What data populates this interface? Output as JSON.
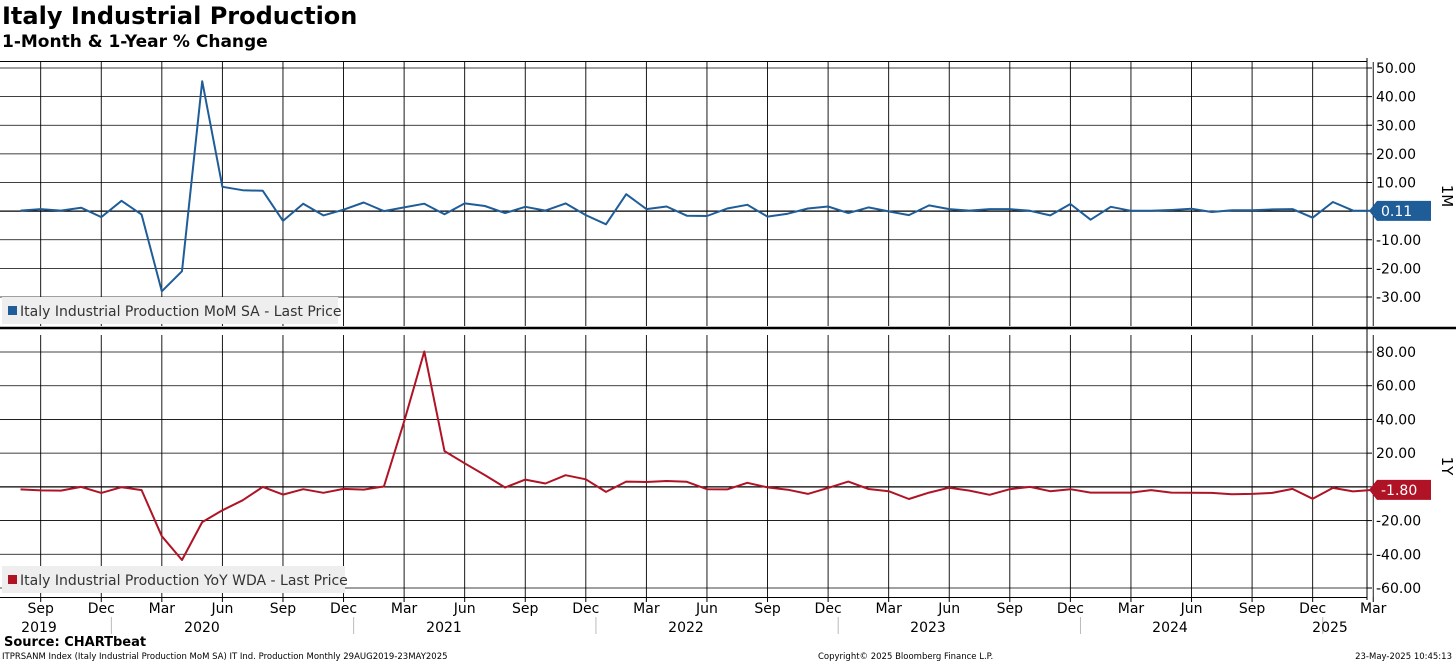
{
  "title": "Italy Industrial Production",
  "subtitle": "1-Month & 1-Year % Change",
  "source": "Source: CHARTbeat",
  "footer": {
    "left": "ITPRSANM Index (Italy Industrial Production MoM SA) IT Ind. Production  Monthly 29AUG2019-23MAY2025",
    "center": "Copyright© 2025 Bloomberg Finance L.P.",
    "right": "23-May-2025 10:45:13"
  },
  "colors": {
    "mom": "#1f5d99",
    "yoy": "#b01325",
    "grid": "#000000"
  },
  "chart_data": [
    {
      "type": "line",
      "panel_label": "1M",
      "x": [
        "2019-08",
        "2019-09",
        "2019-10",
        "2019-11",
        "2019-12",
        "2020-01",
        "2020-02",
        "2020-03",
        "2020-04",
        "2020-05",
        "2020-06",
        "2020-07",
        "2020-08",
        "2020-09",
        "2020-10",
        "2020-11",
        "2020-12",
        "2021-01",
        "2021-02",
        "2021-03",
        "2021-04",
        "2021-05",
        "2021-06",
        "2021-07",
        "2021-08",
        "2021-09",
        "2021-10",
        "2021-11",
        "2021-12",
        "2022-01",
        "2022-02",
        "2022-03",
        "2022-04",
        "2022-05",
        "2022-06",
        "2022-07",
        "2022-08",
        "2022-09",
        "2022-10",
        "2022-11",
        "2022-12",
        "2023-01",
        "2023-02",
        "2023-03",
        "2023-04",
        "2023-05",
        "2023-06",
        "2023-07",
        "2023-08",
        "2023-09",
        "2023-10",
        "2023-11",
        "2023-12",
        "2024-01",
        "2024-02",
        "2024-03",
        "2024-04",
        "2024-05",
        "2024-06",
        "2024-07",
        "2024-08",
        "2024-09",
        "2024-10",
        "2024-11",
        "2024-12",
        "2025-01",
        "2025-02",
        "2025-03"
      ],
      "series": [
        {
          "name": "Italy Industrial Production MoM SA - Last Price",
          "values": [
            0.2,
            0.7,
            0.2,
            1.2,
            -2.1,
            3.6,
            -1.2,
            -28.0,
            -21.0,
            45.4,
            8.5,
            7.3,
            7.1,
            -3.4,
            2.6,
            -1.5,
            0.5,
            3.0,
            0.0,
            1.3,
            2.6,
            -1.1,
            2.7,
            1.8,
            -0.7,
            1.5,
            0.2,
            2.7,
            -1.4,
            -4.6,
            5.9,
            0.7,
            1.6,
            -1.6,
            -1.7,
            0.9,
            2.2,
            -1.9,
            -0.9,
            0.9,
            1.6,
            -0.7,
            1.3,
            -0.1,
            -1.4,
            2.0,
            0.7,
            0.2,
            0.7,
            0.7,
            0.1,
            -1.5,
            2.5,
            -3.0,
            1.5,
            0.1,
            0.1,
            0.4,
            0.8,
            -0.3,
            0.3,
            0.3,
            0.6,
            0.7,
            -2.3,
            3.2,
            0.2,
            0.1
          ]
        }
      ],
      "last_value_label": "0.11",
      "y_ticks": [
        "50.00",
        "40.00",
        "30.00",
        "20.00",
        "10.00",
        "0.00",
        "-10.00",
        "-20.00",
        "-30.00"
      ],
      "ylim": [
        -40,
        52
      ]
    },
    {
      "type": "line",
      "panel_label": "1Y",
      "x": [
        "2019-08",
        "2019-09",
        "2019-10",
        "2019-11",
        "2019-12",
        "2020-01",
        "2020-02",
        "2020-03",
        "2020-04",
        "2020-05",
        "2020-06",
        "2020-07",
        "2020-08",
        "2020-09",
        "2020-10",
        "2020-11",
        "2020-12",
        "2021-01",
        "2021-02",
        "2021-03",
        "2021-04",
        "2021-05",
        "2021-06",
        "2021-07",
        "2021-08",
        "2021-09",
        "2021-10",
        "2021-11",
        "2021-12",
        "2022-01",
        "2022-02",
        "2022-03",
        "2022-04",
        "2022-05",
        "2022-06",
        "2022-07",
        "2022-08",
        "2022-09",
        "2022-10",
        "2022-11",
        "2022-12",
        "2023-01",
        "2023-02",
        "2023-03",
        "2023-04",
        "2023-05",
        "2023-06",
        "2023-07",
        "2023-08",
        "2023-09",
        "2023-10",
        "2023-11",
        "2023-12",
        "2024-01",
        "2024-02",
        "2024-03",
        "2024-04",
        "2024-05",
        "2024-06",
        "2024-07",
        "2024-08",
        "2024-09",
        "2024-10",
        "2024-11",
        "2024-12",
        "2025-01",
        "2025-02",
        "2025-03"
      ],
      "series": [
        {
          "name": "Italy Industrial Production YoY WDA - Last Price",
          "values": [
            -1.5,
            -2.1,
            -2.2,
            0.0,
            -3.6,
            -0.2,
            -1.9,
            -29.3,
            -43.4,
            -20.9,
            -13.9,
            -8.0,
            0.0,
            -4.6,
            -1.4,
            -3.5,
            -1.2,
            -1.6,
            0.2,
            38.7,
            80.3,
            21.2,
            14.0,
            7.0,
            -0.4,
            4.3,
            2.0,
            6.9,
            4.5,
            -3.0,
            3.1,
            2.9,
            3.5,
            3.0,
            -1.4,
            -1.5,
            2.4,
            -0.3,
            -1.7,
            -4.2,
            -0.6,
            3.1,
            -1.3,
            -2.6,
            -7.2,
            -3.4,
            -0.5,
            -2.2,
            -4.7,
            -1.4,
            0.0,
            -2.6,
            -1.4,
            -3.4,
            -3.4,
            -3.4,
            -1.9,
            -3.4,
            -3.5,
            -3.6,
            -4.4,
            -4.2,
            -3.6,
            -1.2,
            -7.1,
            -0.6,
            -2.7,
            -1.8
          ]
        }
      ],
      "last_value_label": "-1.80",
      "y_ticks": [
        "80.00",
        "60.00",
        "40.00",
        "20.00",
        "0.00",
        "-20.00",
        "-40.00",
        "-60.00"
      ],
      "ylim": [
        -62,
        90
      ]
    }
  ],
  "x_axis": {
    "month_labels": [
      "Sep",
      "Dec",
      "Mar",
      "Jun",
      "Sep",
      "Dec",
      "Mar",
      "Jun",
      "Sep",
      "Dec",
      "Mar",
      "Jun",
      "Sep",
      "Dec",
      "Mar",
      "Jun",
      "Sep",
      "Dec",
      "Mar",
      "Jun",
      "Sep",
      "Dec",
      "Mar"
    ],
    "year_labels": [
      "2019",
      "2020",
      "2021",
      "2022",
      "2023",
      "2024",
      "2025"
    ]
  }
}
